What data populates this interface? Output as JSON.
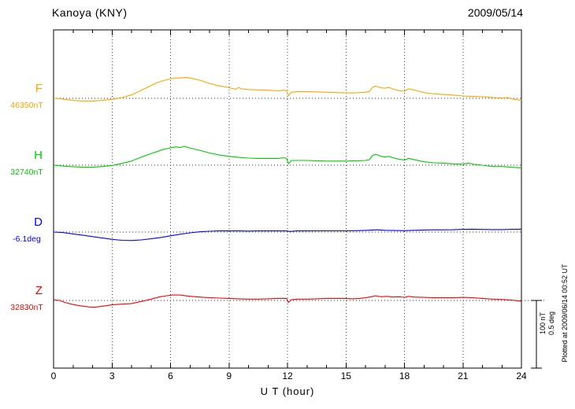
{
  "header": {
    "station": "Kanoya (KNY)",
    "date": "2009/05/14"
  },
  "x_axis": {
    "label": "U T (hour)",
    "min": 0,
    "max": 24,
    "ticks": [
      0,
      3,
      6,
      9,
      12,
      15,
      18,
      21,
      24
    ],
    "minor_step": 1
  },
  "scale_bar": {
    "labels": [
      "100 nT",
      "0.5 deg"
    ]
  },
  "footer_note": "Plotted at 2009/06/14 00:52 UT",
  "chart_data": {
    "type": "line",
    "title": "Kanoya (KNY) magnetogram",
    "subtitle": "2009/05/14",
    "x_unit": "UT hour",
    "xlim": [
      0,
      24
    ],
    "grid": "vertical dotted every 3 hours, dotted baseline per channel",
    "legend_position": "left channel labels",
    "scale": {
      "nT_per_division": 100,
      "deg_per_division": 0.5
    },
    "series": [
      {
        "name": "F",
        "unit": "nT",
        "color": "#FFA500",
        "baseline_label": "46350nT",
        "baseline_value": 46350,
        "points": [
          [
            0,
            0
          ],
          [
            0.3,
            -0.5
          ],
          [
            0.6,
            -1.5
          ],
          [
            1,
            -3
          ],
          [
            1.5,
            -4
          ],
          [
            2,
            -4
          ],
          [
            2.5,
            -3
          ],
          [
            3,
            -1.5
          ],
          [
            3.5,
            1
          ],
          [
            4,
            5
          ],
          [
            4.5,
            12
          ],
          [
            5,
            19
          ],
          [
            5.3,
            23
          ],
          [
            5.6,
            26
          ],
          [
            5.9,
            28
          ],
          [
            6.2,
            30
          ],
          [
            6.5,
            30
          ],
          [
            6.8,
            31
          ],
          [
            7,
            30
          ],
          [
            7.3,
            28
          ],
          [
            7.6,
            26
          ],
          [
            8,
            22
          ],
          [
            8.4,
            19
          ],
          [
            8.8,
            17
          ],
          [
            9.1,
            15
          ],
          [
            9.35,
            13.5
          ],
          [
            9.5,
            16
          ],
          [
            9.65,
            14
          ],
          [
            10,
            13
          ],
          [
            10.5,
            12.5
          ],
          [
            11,
            12
          ],
          [
            11.5,
            11
          ],
          [
            11.8,
            12
          ],
          [
            11.95,
            11
          ],
          [
            12.05,
            4
          ],
          [
            12.2,
            9
          ],
          [
            12.5,
            10
          ],
          [
            13,
            10
          ],
          [
            13.5,
            9.5
          ],
          [
            14,
            9
          ],
          [
            14.5,
            8.5
          ],
          [
            15,
            8
          ],
          [
            15.5,
            8
          ],
          [
            16,
            9
          ],
          [
            16.2,
            10
          ],
          [
            16.35,
            16
          ],
          [
            16.5,
            18
          ],
          [
            16.65,
            17
          ],
          [
            16.8,
            15.5
          ],
          [
            17,
            15
          ],
          [
            17.2,
            16
          ],
          [
            17.4,
            14
          ],
          [
            17.6,
            12
          ],
          [
            17.8,
            11
          ],
          [
            18,
            10.5
          ],
          [
            18.2,
            14
          ],
          [
            18.4,
            13
          ],
          [
            18.6,
            11.5
          ],
          [
            19,
            8.5
          ],
          [
            19.4,
            7
          ],
          [
            19.8,
            6
          ],
          [
            20.2,
            5.5
          ],
          [
            20.6,
            4.5
          ],
          [
            21,
            3.5
          ],
          [
            21.4,
            3
          ],
          [
            21.8,
            2.5
          ],
          [
            22.2,
            2
          ],
          [
            22.6,
            1
          ],
          [
            23,
            0.5
          ],
          [
            23.3,
            1
          ],
          [
            23.6,
            -1.5
          ],
          [
            24,
            -3
          ]
        ]
      },
      {
        "name": "H",
        "unit": "nT",
        "color": "#00CC00",
        "baseline_label": "32740nT",
        "baseline_value": 32740,
        "points": [
          [
            0,
            0
          ],
          [
            0.4,
            -1
          ],
          [
            0.8,
            -2
          ],
          [
            1.2,
            -2.5
          ],
          [
            1.6,
            -3
          ],
          [
            2,
            -3
          ],
          [
            2.5,
            -2
          ],
          [
            3,
            -0.5
          ],
          [
            3.5,
            2.5
          ],
          [
            4,
            6
          ],
          [
            4.5,
            12
          ],
          [
            5,
            17
          ],
          [
            5.3,
            20
          ],
          [
            5.6,
            23
          ],
          [
            5.9,
            25
          ],
          [
            6.1,
            26
          ],
          [
            6.3,
            27
          ],
          [
            6.5,
            26
          ],
          [
            6.7,
            28
          ],
          [
            6.9,
            26
          ],
          [
            7.2,
            24
          ],
          [
            7.5,
            22
          ],
          [
            8,
            18
          ],
          [
            8.5,
            15
          ],
          [
            9,
            13
          ],
          [
            9.5,
            11.5
          ],
          [
            10,
            10.5
          ],
          [
            10.5,
            10
          ],
          [
            11,
            10
          ],
          [
            11.5,
            10
          ],
          [
            11.8,
            11
          ],
          [
            11.95,
            10
          ],
          [
            12.05,
            2
          ],
          [
            12.2,
            7
          ],
          [
            12.5,
            7
          ],
          [
            13,
            7
          ],
          [
            13.5,
            6.5
          ],
          [
            14,
            6
          ],
          [
            14.5,
            6
          ],
          [
            15,
            6
          ],
          [
            15.5,
            6.5
          ],
          [
            16,
            7
          ],
          [
            16.2,
            8
          ],
          [
            16.35,
            14
          ],
          [
            16.5,
            16
          ],
          [
            16.65,
            15
          ],
          [
            16.8,
            13
          ],
          [
            17,
            12
          ],
          [
            17.2,
            13
          ],
          [
            17.4,
            11
          ],
          [
            17.6,
            9.5
          ],
          [
            18,
            7.5
          ],
          [
            18.2,
            10
          ],
          [
            18.4,
            9
          ],
          [
            18.6,
            7.5
          ],
          [
            19,
            5
          ],
          [
            19.5,
            3.5
          ],
          [
            20,
            3
          ],
          [
            20.5,
            2
          ],
          [
            21,
            1.5
          ],
          [
            21.3,
            3
          ],
          [
            21.6,
            1
          ],
          [
            22,
            0
          ],
          [
            22.5,
            -2
          ],
          [
            23,
            -2
          ],
          [
            23.5,
            -3
          ],
          [
            24,
            -4
          ]
        ]
      },
      {
        "name": "D",
        "unit": "deg",
        "color": "#0000FF",
        "baseline_label": "-6.1deg",
        "baseline_value": -6.1,
        "points": [
          [
            0,
            0
          ],
          [
            0.5,
            -0.004
          ],
          [
            1,
            -0.014
          ],
          [
            1.5,
            -0.024
          ],
          [
            2,
            -0.034
          ],
          [
            2.5,
            -0.044
          ],
          [
            3,
            -0.054
          ],
          [
            3.5,
            -0.061
          ],
          [
            4,
            -0.063
          ],
          [
            4.5,
            -0.058
          ],
          [
            5,
            -0.05
          ],
          [
            5.5,
            -0.04
          ],
          [
            6,
            -0.028
          ],
          [
            6.5,
            -0.016
          ],
          [
            7,
            -0.006
          ],
          [
            7.5,
            0.002
          ],
          [
            8,
            0.006
          ],
          [
            8.5,
            0.008
          ],
          [
            9,
            0.008
          ],
          [
            9.5,
            0.008
          ],
          [
            10,
            0.007
          ],
          [
            10.5,
            0.008
          ],
          [
            11,
            0.008
          ],
          [
            11.5,
            0.008
          ],
          [
            11.95,
            0.008
          ],
          [
            12.1,
            0.004
          ],
          [
            12.5,
            0.008
          ],
          [
            13,
            0.008
          ],
          [
            13.5,
            0.009
          ],
          [
            14,
            0.009
          ],
          [
            14.5,
            0.009
          ],
          [
            15,
            0.009
          ],
          [
            15.5,
            0.01
          ],
          [
            16,
            0.012
          ],
          [
            16.3,
            0.014
          ],
          [
            16.6,
            0.016
          ],
          [
            17,
            0.013
          ],
          [
            17.5,
            0.011
          ],
          [
            18,
            0.01
          ],
          [
            18.5,
            0.013
          ],
          [
            19,
            0.015
          ],
          [
            19.5,
            0.016
          ],
          [
            20,
            0.016
          ],
          [
            20.5,
            0.017
          ],
          [
            21,
            0.02
          ],
          [
            21.5,
            0.021
          ],
          [
            22,
            0.019
          ],
          [
            22.5,
            0.018
          ],
          [
            23,
            0.018
          ],
          [
            23.5,
            0.02
          ],
          [
            24,
            0.021
          ]
        ]
      },
      {
        "name": "Z",
        "unit": "nT",
        "color": "#FF0000",
        "baseline_label": "32830nT",
        "baseline_value": 32830,
        "points": [
          [
            0,
            1
          ],
          [
            0.3,
            0
          ],
          [
            0.6,
            -3
          ],
          [
            1,
            -6
          ],
          [
            1.4,
            -8
          ],
          [
            1.8,
            -9.5
          ],
          [
            2.1,
            -10
          ],
          [
            2.5,
            -8.5
          ],
          [
            3,
            -6.5
          ],
          [
            3.5,
            -5.5
          ],
          [
            4,
            -4.5
          ],
          [
            4.5,
            -1.5
          ],
          [
            5,
            2
          ],
          [
            5.4,
            5
          ],
          [
            5.8,
            7
          ],
          [
            6.1,
            8
          ],
          [
            6.5,
            8
          ],
          [
            6.9,
            6.5
          ],
          [
            7.3,
            5.5
          ],
          [
            7.7,
            4.5
          ],
          [
            8.1,
            4
          ],
          [
            8.5,
            3.5
          ],
          [
            9,
            3
          ],
          [
            9.5,
            2.5
          ],
          [
            10,
            2
          ],
          [
            10.5,
            2
          ],
          [
            11,
            2.5
          ],
          [
            11.5,
            3
          ],
          [
            11.95,
            3
          ],
          [
            12.05,
            -3
          ],
          [
            12.2,
            1
          ],
          [
            12.5,
            2
          ],
          [
            13,
            2
          ],
          [
            13.5,
            2.5
          ],
          [
            14,
            3
          ],
          [
            14.5,
            3
          ],
          [
            15,
            3
          ],
          [
            15.3,
            2.5
          ],
          [
            15.7,
            3
          ],
          [
            16,
            4
          ],
          [
            16.3,
            5.5
          ],
          [
            16.5,
            7
          ],
          [
            16.8,
            5.5
          ],
          [
            17.1,
            6
          ],
          [
            17.4,
            5
          ],
          [
            17.7,
            5.5
          ],
          [
            18,
            4.5
          ],
          [
            18.2,
            6
          ],
          [
            18.5,
            5
          ],
          [
            19,
            4.5
          ],
          [
            19.5,
            4
          ],
          [
            20,
            4
          ],
          [
            20.5,
            4
          ],
          [
            21,
            4.5
          ],
          [
            21.5,
            4
          ],
          [
            22,
            3
          ],
          [
            22.5,
            2
          ],
          [
            23,
            1.5
          ],
          [
            23.5,
            0.5
          ],
          [
            24,
            -1
          ]
        ]
      }
    ]
  }
}
